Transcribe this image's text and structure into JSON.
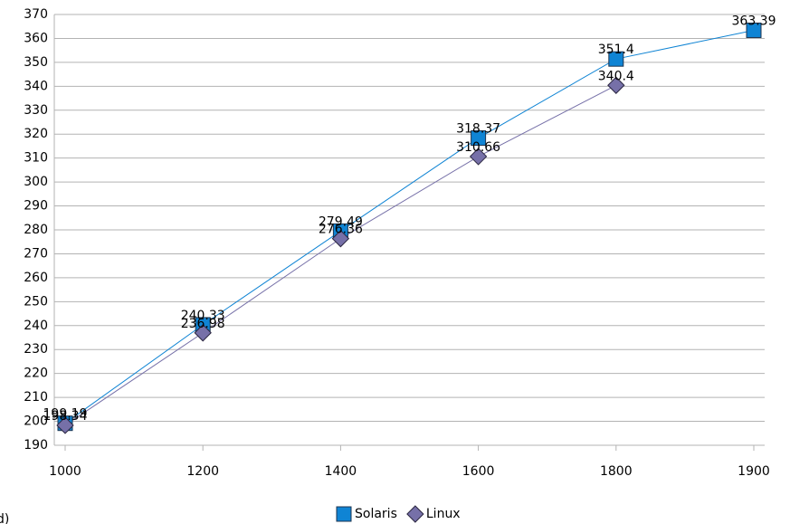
{
  "chart_data": {
    "type": "line",
    "categories": [
      "1000",
      "1200",
      "1400",
      "1600",
      "1800",
      "1900"
    ],
    "series": [
      {
        "name": "Solaris",
        "color": "#0f84d4",
        "marker": "square",
        "values": [
          199.19,
          240.33,
          279.49,
          318.37,
          351.4,
          363.39
        ]
      },
      {
        "name": "Linux",
        "color": "#7670a8",
        "marker": "diamond",
        "values": [
          198.34,
          236.98,
          276.36,
          310.66,
          340.4,
          null
        ]
      }
    ],
    "ylim": [
      190,
      370
    ],
    "yticks": [
      190,
      200,
      210,
      220,
      230,
      240,
      250,
      260,
      270,
      280,
      290,
      300,
      310,
      320,
      330,
      340,
      350,
      360,
      370
    ],
    "grid": true,
    "legend": "bottom",
    "annotation": "d)"
  }
}
